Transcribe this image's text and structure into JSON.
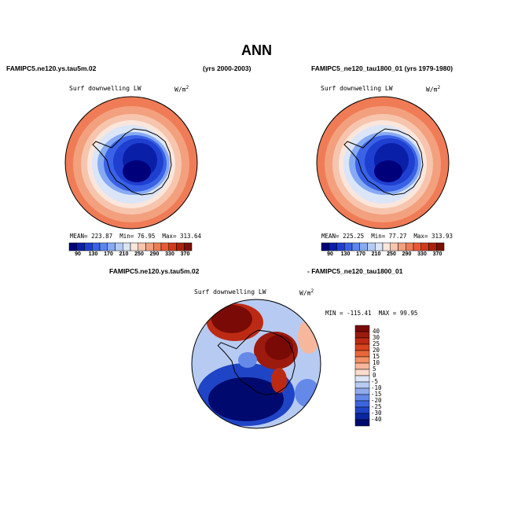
{
  "page": {
    "title": "ANN",
    "left_case": "FAMIPC5.ne120.ys.tau5m.02",
    "left_years": "(yrs 2000-2003)",
    "right_case": "FAMIPC5_ne120_tau1800_01 (yrs 1979-1980)",
    "diff_left": "FAMIPC5.ne120.ys.tau5m.02",
    "diff_right": "- FAMIPC5_ne120_tau1800_01"
  },
  "chart_data": [
    {
      "type": "heatmap",
      "panel": "left",
      "variable": "Surf downwelling LW",
      "units_base": "W/m",
      "units_exp": "2",
      "mean_label": "MEAN=",
      "mean": "223.87",
      "min_label": "Min=",
      "min": "76.95",
      "max_label": "Max=",
      "max": "313.64",
      "colorbar_ticks": [
        "90",
        "130",
        "170",
        "210",
        "250",
        "290",
        "330",
        "370"
      ]
    },
    {
      "type": "heatmap",
      "panel": "right",
      "variable": "Surf downwelling LW",
      "units_base": "W/m",
      "units_exp": "2",
      "mean_label": "MEAN=",
      "mean": "225.25",
      "min_label": "Min=",
      "min": "77.27",
      "max_label": "Max=",
      "max": "313.93",
      "colorbar_ticks": [
        "90",
        "130",
        "170",
        "210",
        "250",
        "290",
        "330",
        "370"
      ]
    },
    {
      "type": "heatmap",
      "panel": "difference",
      "variable": "Surf downwelling LW",
      "units_base": "W/m",
      "units_exp": "2",
      "min_label": "MIN =",
      "min": "-115.41",
      "max_label": "MAX =",
      "max": "99.95",
      "colorbar_ticks": [
        "40",
        "30",
        "25",
        "20",
        "15",
        "10",
        "5",
        "0",
        "-5",
        "-10",
        "-15",
        "-20",
        "-25",
        "-30",
        "-40"
      ]
    }
  ],
  "colors": {
    "abs_scale": [
      "#00007a",
      "#0a1fa8",
      "#1f3fd0",
      "#3a62e6",
      "#5a86ef",
      "#86aaf3",
      "#b3cbf6",
      "#dbe5f8",
      "#fbe6dc",
      "#f7c5ad",
      "#f3a07f",
      "#ef7c56",
      "#e85a35",
      "#d13a1c",
      "#aa220d",
      "#7a1006"
    ],
    "diff_scale": [
      "#7a0a06",
      "#9c1a0e",
      "#bd2a14",
      "#d8431f",
      "#e8673a",
      "#f29066",
      "#f7b79c",
      "#fbdccd",
      "#dde6f6",
      "#b7cbf2",
      "#8eabee",
      "#6589e8",
      "#3c66df",
      "#1f44c6",
      "#0a26a0",
      "#000a6e"
    ],
    "land_outline": "#000000"
  }
}
